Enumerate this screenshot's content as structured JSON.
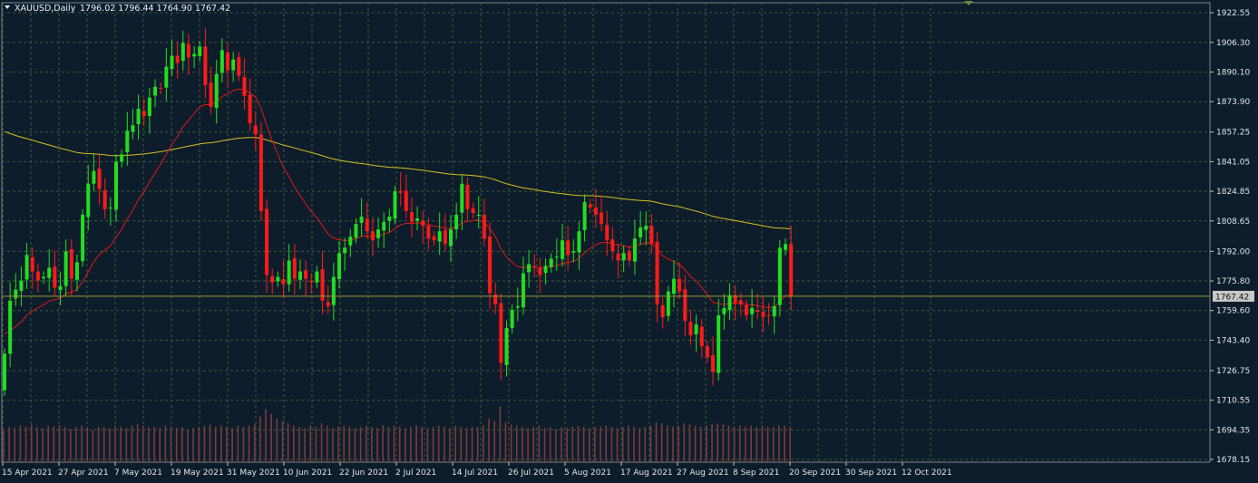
{
  "title": {
    "symbol": "XAUUSD,Daily",
    "ohlc": "1796.02 1796.44 1764.90 1767.42"
  },
  "price_tag": "1767.42",
  "colors": {
    "background": "#0e1d2b",
    "grid": "#3c5a3c",
    "bull": "#22dd22",
    "bear": "#ff1a1a",
    "ma_fast": "#e01818",
    "ma_slow": "#d6c01e",
    "volume": "#7a3b3b",
    "price_line": "#9a9a2c"
  },
  "chart_data": {
    "type": "candlestick",
    "symbol": "XAUUSD",
    "timeframe": "Daily",
    "ylim": [
      1678.15,
      1922.55
    ],
    "y_ticks": [
      "1922.55",
      "1906.30",
      "1890.10",
      "1873.90",
      "1857.25",
      "1841.05",
      "1824.85",
      "1808.65",
      "1792.00",
      "1775.80",
      "1759.60",
      "1743.40",
      "1726.75",
      "1710.55",
      "1694.35",
      "1678.15"
    ],
    "x_ticks": [
      "15 Apr 2021",
      "27 Apr 2021",
      "7 May 2021",
      "19 May 2021",
      "31 May 2021",
      "10 Jun 2021",
      "22 Jun 2021",
      "2 Jul 2021",
      "14 Jul 2021",
      "26 Jul 2021",
      "5 Aug 2021",
      "17 Aug 2021",
      "27 Aug 2021",
      "8 Sep 2021",
      "20 Sep 2021",
      "30 Sep 2021",
      "12 Oct 2021"
    ],
    "last_price": 1767.42,
    "close": [
      1736,
      1765,
      1771,
      1776,
      1790,
      1781,
      1776,
      1778,
      1783,
      1772,
      1773,
      1792,
      1777,
      1786,
      1812,
      1829,
      1836,
      1826,
      1815,
      1816,
      1841,
      1845,
      1858,
      1861,
      1870,
      1866,
      1876,
      1882,
      1881,
      1893,
      1899,
      1895,
      1906,
      1898,
      1900,
      1904,
      1883,
      1871,
      1889,
      1902,
      1891,
      1897,
      1888,
      1877,
      1862,
      1856,
      1814,
      1779,
      1775,
      1778,
      1774,
      1787,
      1777,
      1781,
      1777,
      1775,
      1781,
      1765,
      1762,
      1778,
      1791,
      1794,
      1800,
      1807,
      1811,
      1803,
      1798,
      1804,
      1808,
      1811,
      1825,
      1824,
      1814,
      1808,
      1810,
      1806,
      1799,
      1798,
      1803,
      1796,
      1804,
      1812,
      1829,
      1815,
      1813,
      1812,
      1799,
      1769,
      1763,
      1731,
      1750,
      1760,
      1762,
      1780,
      1785,
      1783,
      1779,
      1784,
      1788,
      1789,
      1798,
      1790,
      1792,
      1803,
      1819,
      1816,
      1812,
      1807,
      1798,
      1792,
      1787,
      1791,
      1787,
      1799,
      1805,
      1806,
      1796,
      1763,
      1756,
      1770,
      1777,
      1770,
      1754,
      1746,
      1752,
      1740,
      1734,
      1726,
      1757,
      1761,
      1768,
      1764,
      1763,
      1757,
      1761,
      1759,
      1756,
      1757,
      1762,
      1794,
      1796,
      1767.42
    ],
    "volume_relative": [
      0.55,
      0.6,
      0.58,
      0.62,
      0.6,
      0.64,
      0.6,
      0.58,
      0.62,
      0.6,
      0.63,
      0.6,
      0.57,
      0.6,
      0.62,
      0.58,
      0.55,
      0.6,
      0.6,
      0.58,
      0.62,
      0.6,
      0.58,
      0.62,
      0.65,
      0.62,
      0.6,
      0.6,
      0.58,
      0.62,
      0.6,
      0.58,
      0.6,
      0.56,
      0.58,
      0.6,
      0.62,
      0.64,
      0.6,
      0.62,
      0.6,
      0.58,
      0.62,
      0.6,
      0.62,
      0.65,
      0.78,
      0.9,
      0.82,
      0.74,
      0.7,
      0.66,
      0.62,
      0.6,
      0.58,
      0.62,
      0.6,
      0.66,
      0.62,
      0.58,
      0.6,
      0.62,
      0.6,
      0.58,
      0.6,
      0.62,
      0.6,
      0.58,
      0.62,
      0.6,
      0.62,
      0.6,
      0.58,
      0.6,
      0.62,
      0.6,
      0.58,
      0.6,
      0.62,
      0.6,
      0.58,
      0.62,
      0.6,
      0.58,
      0.6,
      0.6,
      0.62,
      0.74,
      0.7,
      0.95,
      0.68,
      0.64,
      0.62,
      0.6,
      0.58,
      0.6,
      0.62,
      0.58,
      0.6,
      0.56,
      0.6,
      0.58,
      0.6,
      0.62,
      0.6,
      0.58,
      0.6,
      0.6,
      0.62,
      0.6,
      0.58,
      0.6,
      0.62,
      0.6,
      0.58,
      0.6,
      0.62,
      0.68,
      0.66,
      0.62,
      0.6,
      0.62,
      0.66,
      0.64,
      0.62,
      0.6,
      0.62,
      0.64,
      0.66,
      0.64,
      0.62,
      0.6,
      0.62,
      0.6,
      0.62,
      0.6,
      0.62,
      0.6,
      0.6,
      0.62,
      0.62,
      0.6
    ],
    "ma_fast_period_hint": "short moving average (red)",
    "ma_slow_period_hint": "long moving average (yellow)"
  }
}
